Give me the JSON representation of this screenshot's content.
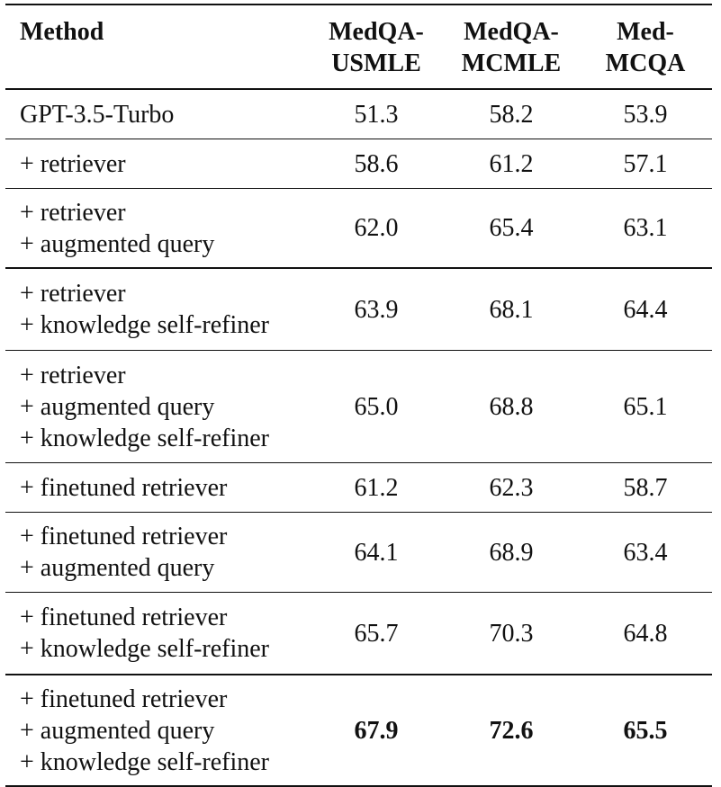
{
  "table": {
    "headers": {
      "method": "Method",
      "usmle": [
        "MedQA-",
        "USMLE"
      ],
      "mcmle": [
        "MedQA-",
        "MCMLE"
      ],
      "medmcqa": [
        "Med-",
        "MCQA"
      ]
    },
    "rows": [
      {
        "method": [
          "GPT-3.5-Turbo"
        ],
        "values": [
          "51.3",
          "58.2",
          "53.9"
        ]
      },
      {
        "method": [
          "+ retriever"
        ],
        "values": [
          "58.6",
          "61.2",
          "57.1"
        ]
      },
      {
        "method": [
          "+ retriever",
          "+ augmented query"
        ],
        "values": [
          "62.0",
          "65.4",
          "63.1"
        ]
      },
      {
        "method": [
          "+ retriever",
          "+ knowledge self-refiner"
        ],
        "values": [
          "63.9",
          "68.1",
          "64.4"
        ]
      },
      {
        "method": [
          "+ retriever",
          "+ augmented query",
          "+ knowledge self-refiner"
        ],
        "values": [
          "65.0",
          "68.8",
          "65.1"
        ]
      },
      {
        "method": [
          "+ finetuned retriever"
        ],
        "values": [
          "61.2",
          "62.3",
          "58.7"
        ]
      },
      {
        "method": [
          "+ finetuned retriever",
          "+ augmented query"
        ],
        "values": [
          "64.1",
          "68.9",
          "63.4"
        ]
      },
      {
        "method": [
          "+ finetuned retriever",
          "+ knowledge self-refiner"
        ],
        "values": [
          "65.7",
          "70.3",
          "64.8"
        ]
      },
      {
        "method": [
          "+ finetuned retriever",
          "+ augmented query",
          "+ knowledge self-refiner"
        ],
        "values": [
          "67.9",
          "72.6",
          "65.5"
        ]
      }
    ]
  }
}
